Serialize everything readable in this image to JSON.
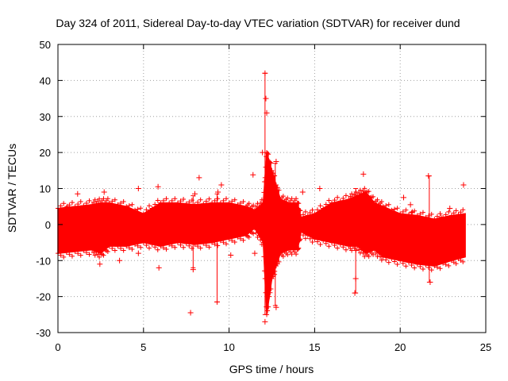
{
  "chart_data": {
    "type": "scatter",
    "title": "Day 324 of 2011, Sidereal Day-to-day VTEC variation (SDTVAR) for receiver dund",
    "xlabel": "GPS time / hours",
    "ylabel": "SDTVAR / TECUs",
    "xlim": [
      0,
      25
    ],
    "ylim": [
      -30,
      50
    ],
    "x_ticks": [
      0,
      5,
      10,
      15,
      20,
      25
    ],
    "y_ticks": [
      -30,
      -20,
      -10,
      0,
      10,
      20,
      30,
      40,
      50
    ],
    "grid": true,
    "series_color": "#ff0000",
    "series": [
      {
        "name": "SDTVAR",
        "marker": "plus",
        "band": {
          "x": [
            0.0,
            1.0,
            2.0,
            2.5,
            3.0,
            4.0,
            5.0,
            6.0,
            7.0,
            8.0,
            9.0,
            10.0,
            11.0,
            11.5,
            12.0,
            12.2,
            12.5,
            13.0,
            13.5,
            14.0,
            14.2,
            15.0,
            16.0,
            17.0,
            17.5,
            18.0,
            18.5,
            19.0,
            20.0,
            21.0,
            22.0,
            23.0,
            23.8
          ],
          "upper": [
            4.5,
            5.0,
            5.5,
            6.0,
            6.0,
            5.0,
            3.0,
            6.0,
            6.0,
            5.5,
            6.0,
            6.0,
            5.0,
            4.0,
            6.0,
            20.0,
            15.0,
            7.0,
            6.0,
            6.0,
            2.0,
            3.0,
            6.0,
            7.0,
            8.0,
            9.0,
            6.0,
            5.0,
            3.0,
            2.5,
            1.5,
            2.5,
            3.0
          ],
          "lower": [
            -8.0,
            -7.5,
            -7.0,
            -8.0,
            -6.0,
            -6.0,
            -5.0,
            -6.0,
            -5.0,
            -5.5,
            -5.0,
            -4.0,
            -3.0,
            -1.0,
            -5.0,
            -25.0,
            -15.0,
            -8.0,
            -7.0,
            -7.0,
            -2.0,
            -4.0,
            -5.0,
            -6.0,
            -6.0,
            -8.0,
            -7.0,
            -9.0,
            -10.0,
            -11.0,
            -11.5,
            -10.0,
            -9.0
          ]
        },
        "outliers": [
          {
            "x": 0.55,
            "y": 5.0
          },
          {
            "x": 1.15,
            "y": 8.5
          },
          {
            "x": 2.45,
            "y": -11.0
          },
          {
            "x": 2.7,
            "y": 9.0
          },
          {
            "x": 3.6,
            "y": -10.0
          },
          {
            "x": 4.7,
            "y": 10.0
          },
          {
            "x": 4.7,
            "y": -8.0
          },
          {
            "x": 5.85,
            "y": 10.5
          },
          {
            "x": 5.9,
            "y": -12.0
          },
          {
            "x": 7.75,
            "y": -24.5
          },
          {
            "x": 7.9,
            "y": -12.5
          },
          {
            "x": 8.0,
            "y": 8.5
          },
          {
            "x": 8.25,
            "y": 13.0
          },
          {
            "x": 9.35,
            "y": 9.0
          },
          {
            "x": 9.3,
            "y": -21.5
          },
          {
            "x": 9.55,
            "y": 11.0
          },
          {
            "x": 10.1,
            "y": -8.5
          },
          {
            "x": 11.4,
            "y": 13.8
          },
          {
            "x": 11.5,
            "y": -8.0
          },
          {
            "x": 11.95,
            "y": 20.0
          },
          {
            "x": 12.1,
            "y": 42.0
          },
          {
            "x": 12.15,
            "y": 35.0
          },
          {
            "x": 12.2,
            "y": 31.0
          },
          {
            "x": 12.1,
            "y": -27.0
          },
          {
            "x": 12.3,
            "y": -17.0
          },
          {
            "x": 12.75,
            "y": 17.5
          },
          {
            "x": 12.65,
            "y": -13.0
          },
          {
            "x": 12.75,
            "y": -23.0
          },
          {
            "x": 14.3,
            "y": 9.0
          },
          {
            "x": 15.3,
            "y": 10.0
          },
          {
            "x": 17.4,
            "y": -15.0
          },
          {
            "x": 17.35,
            "y": -19.0
          },
          {
            "x": 17.85,
            "y": 14.0
          },
          {
            "x": 20.2,
            "y": 7.5
          },
          {
            "x": 20.6,
            "y": 5.5
          },
          {
            "x": 20.7,
            "y": 3.5
          },
          {
            "x": 21.65,
            "y": 13.5
          },
          {
            "x": 21.75,
            "y": -16.0
          },
          {
            "x": 22.4,
            "y": 2.0
          },
          {
            "x": 23.7,
            "y": 11.0
          },
          {
            "x": 22.9,
            "y": 4.5
          }
        ],
        "error_bars": [
          {
            "x": 12.1,
            "low": -25.0,
            "high": 42.0
          },
          {
            "x": 12.7,
            "low": -22.5,
            "high": 17.0
          },
          {
            "x": 21.7,
            "low": -16.0,
            "high": 13.5
          },
          {
            "x": 9.3,
            "low": -21.5,
            "high": 8.5
          },
          {
            "x": 7.9,
            "low": -12.0,
            "high": 8.0
          },
          {
            "x": 17.4,
            "low": -19.0,
            "high": 10.0
          }
        ]
      }
    ]
  }
}
